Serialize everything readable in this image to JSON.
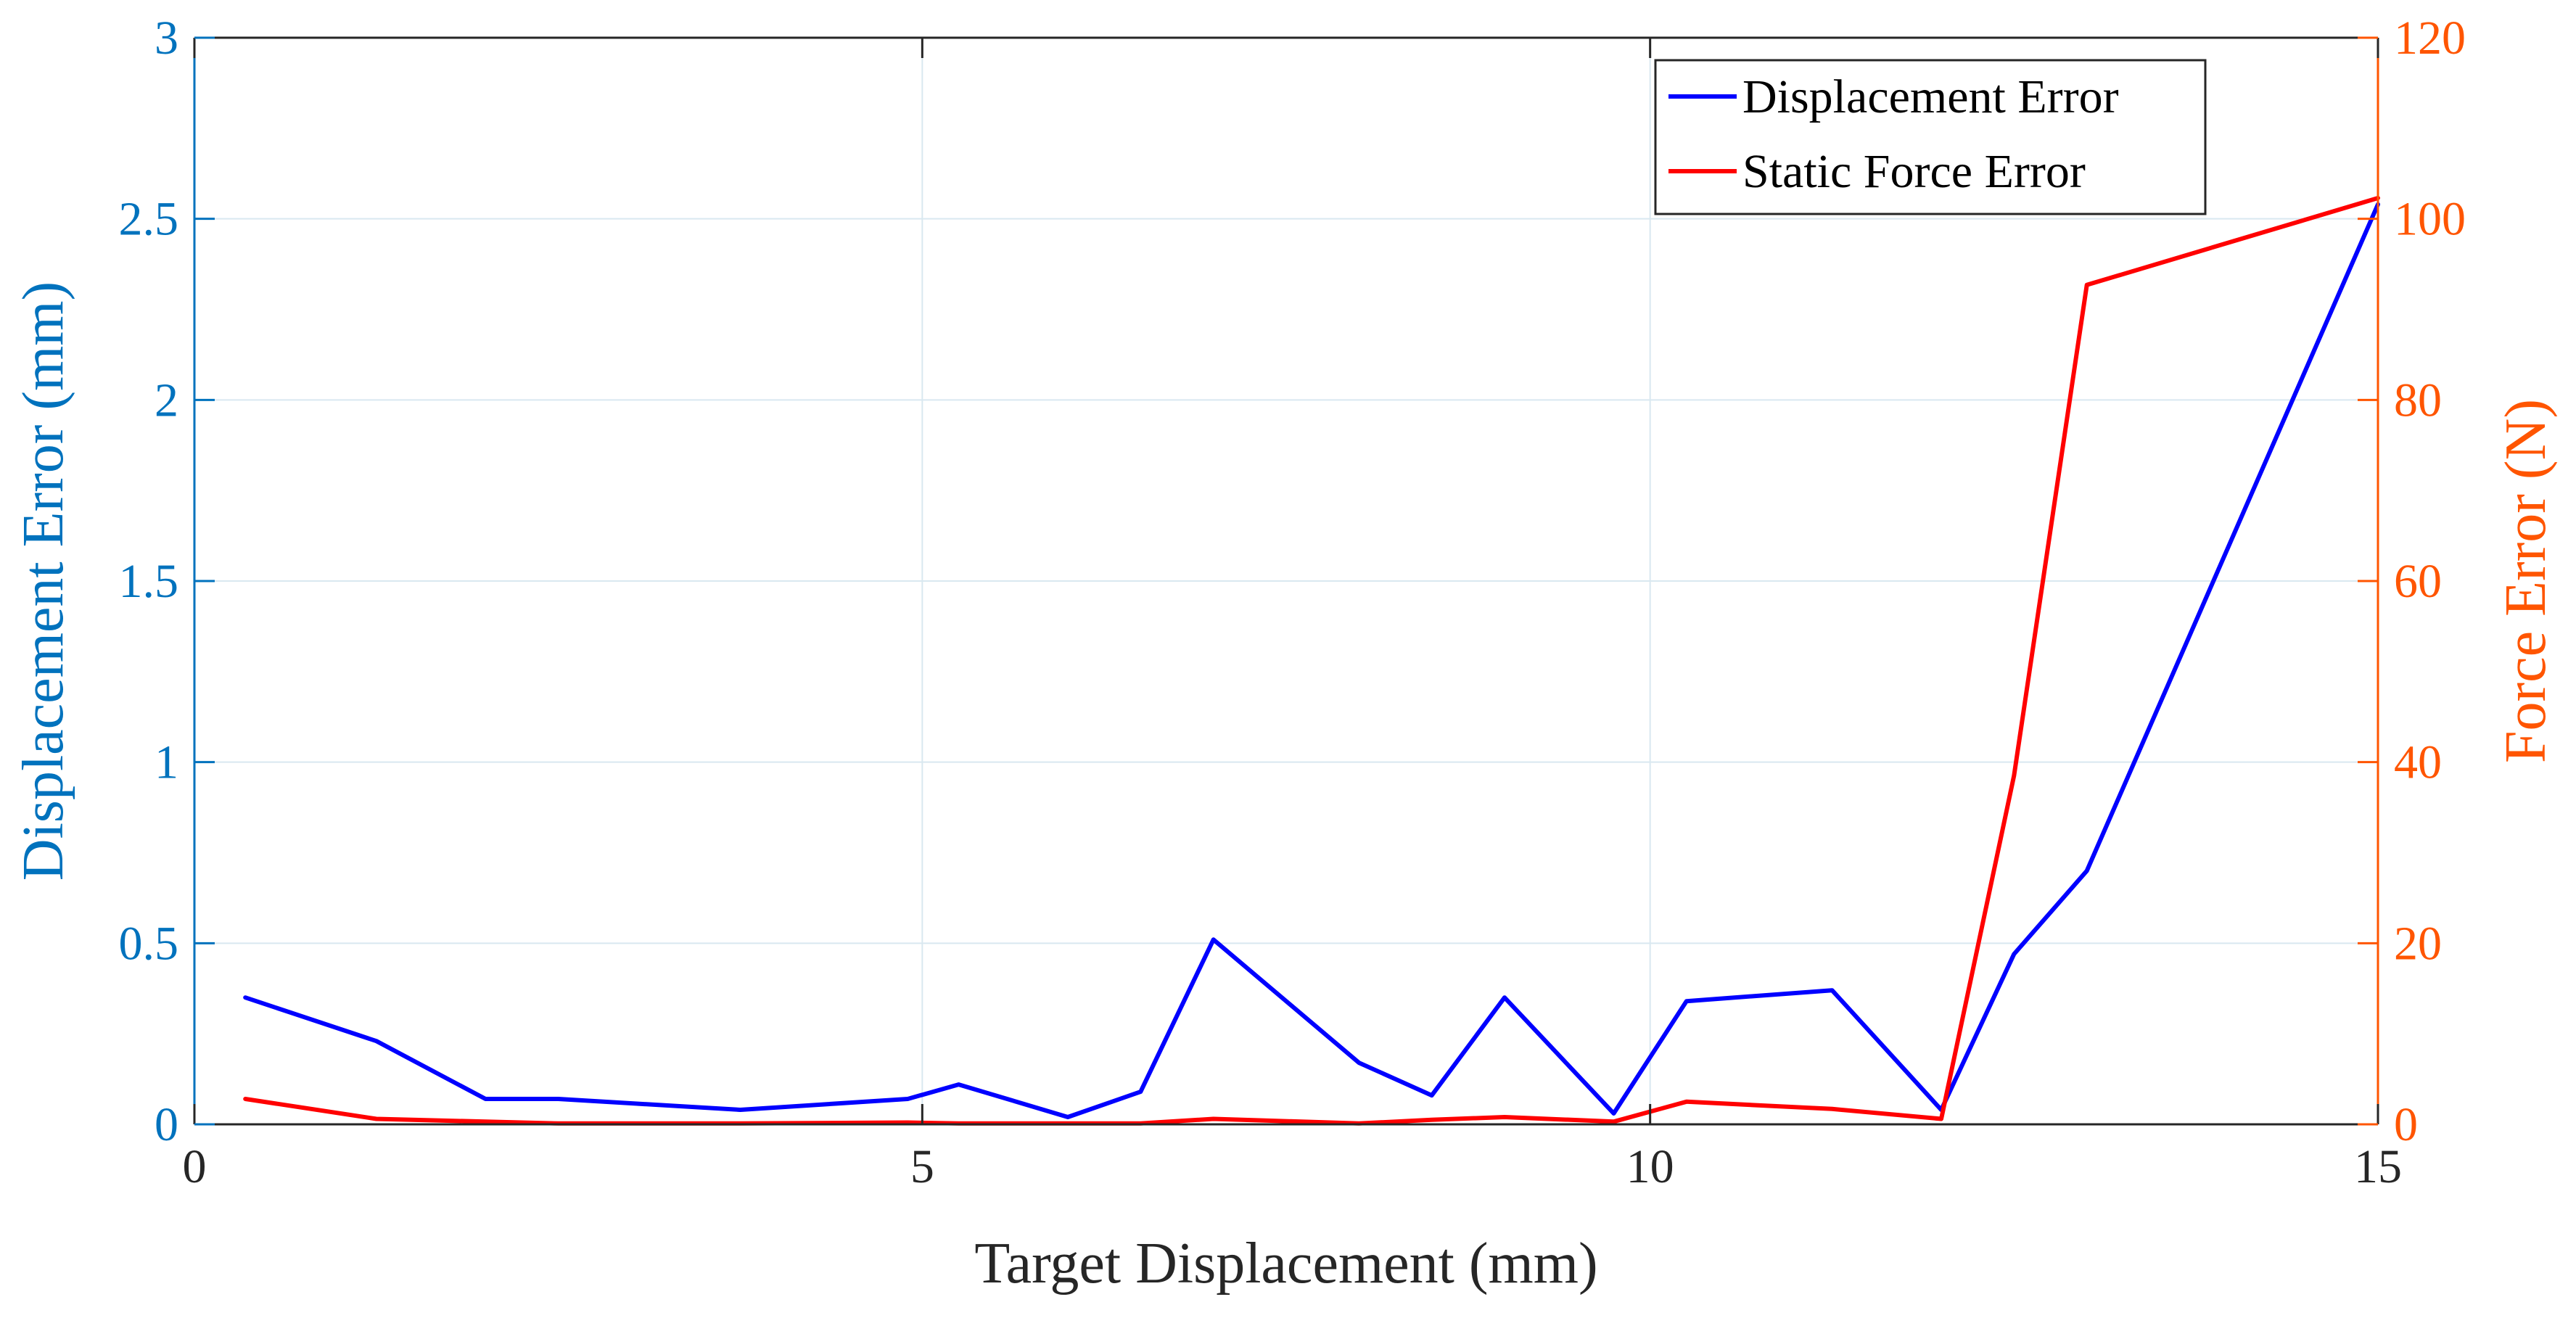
{
  "chart_data": {
    "type": "line",
    "xlabel": "Target Displacement (mm)",
    "ylabel_left": "Displacement Error (mm)",
    "ylabel_right": "Force Error (N)",
    "xlim": [
      0,
      15
    ],
    "ylim_left": [
      0,
      3
    ],
    "ylim_right": [
      0,
      120
    ],
    "xticks": [
      0,
      5,
      10,
      15
    ],
    "yticks_left": [
      0,
      0.5,
      1,
      1.5,
      2,
      2.5,
      3
    ],
    "yticks_right": [
      0,
      20,
      40,
      60,
      80,
      100,
      120
    ],
    "grid": true,
    "legend_position": "top-right",
    "series": [
      {
        "name": "Displacement Error",
        "axis": "left",
        "color": "#0000ff",
        "x": [
          0.35,
          1.25,
          2.0,
          2.5,
          3.75,
          4.9,
          5.25,
          6.0,
          6.5,
          7.0,
          8.0,
          8.5,
          9.0,
          9.75,
          10.25,
          11.25,
          12.0,
          12.5,
          13.0,
          15.0
        ],
        "y": [
          0.35,
          0.23,
          0.07,
          0.07,
          0.04,
          0.07,
          0.11,
          0.02,
          0.09,
          0.51,
          0.17,
          0.08,
          0.35,
          0.03,
          0.34,
          0.37,
          0.04,
          0.47,
          0.7,
          2.54
        ]
      },
      {
        "name": "Static Force Error",
        "axis": "right",
        "color": "#ff0000",
        "x": [
          0.35,
          1.25,
          2.0,
          2.5,
          3.75,
          4.9,
          5.25,
          6.0,
          6.5,
          7.0,
          8.0,
          8.5,
          9.0,
          9.75,
          10.25,
          11.25,
          12.0,
          12.5,
          13.0,
          15.0
        ],
        "y": [
          2.8,
          0.6,
          0.3,
          0.1,
          0.1,
          0.2,
          0.1,
          0.1,
          0.1,
          0.6,
          0.1,
          0.5,
          0.8,
          0.3,
          2.5,
          1.7,
          0.6,
          38.5,
          92.7,
          102.3
        ]
      }
    ],
    "colors": {
      "left_axis": "#0072bd",
      "right_axis": "#ff5500",
      "grid": "#d9e8f0",
      "box": "#262626"
    }
  }
}
